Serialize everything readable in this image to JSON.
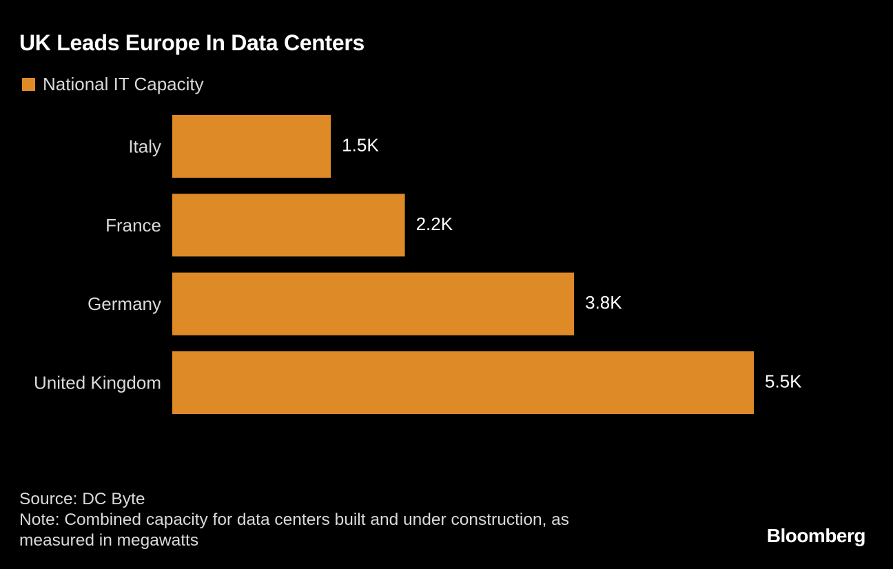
{
  "title": "UK Leads Europe In Data Centers",
  "legend": {
    "label": "National IT Capacity",
    "color": "#de8a27"
  },
  "chart_data": {
    "type": "bar",
    "orientation": "horizontal",
    "title": "UK Leads Europe In Data Centers",
    "categories": [
      "Italy",
      "France",
      "Germany",
      "United Kingdom"
    ],
    "series": [
      {
        "name": "National IT Capacity",
        "values": [
          1500,
          2200,
          3800,
          5500
        ],
        "labels": [
          "1.5K",
          "2.2K",
          "3.8K",
          "5.5K"
        ],
        "color": "#de8a27"
      }
    ],
    "xlim": [
      0,
      5500
    ],
    "grid": false,
    "legend_position": "top-left"
  },
  "footer": {
    "source": "Source: DC Byte",
    "note_line1": "Note: Combined capacity for data centers built and under construction, as",
    "note_line2": "measured in megawatts"
  },
  "brand": "Bloomberg"
}
